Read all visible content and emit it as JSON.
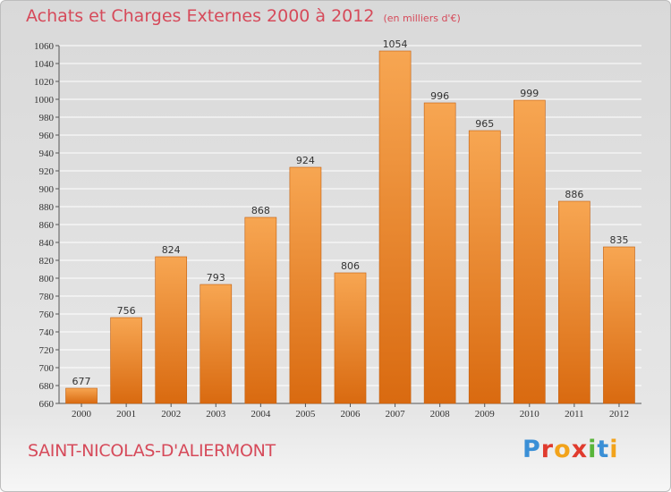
{
  "header": {
    "title": "Achats et Charges Externes 2000 à 2012",
    "unit_note": "(en milliers d'€)"
  },
  "footer": {
    "commune": "SAINT-NICOLAS-D'ALIERMONT",
    "brand_letters": [
      {
        "char": "P",
        "color": "#3a8fd6"
      },
      {
        "char": "r",
        "color": "#e03b2e"
      },
      {
        "char": "o",
        "color": "#f2a31b"
      },
      {
        "char": "x",
        "color": "#e03b2e"
      },
      {
        "char": "i",
        "color": "#59b53a"
      },
      {
        "char": "t",
        "color": "#3a8fd6"
      },
      {
        "char": "i",
        "color": "#f2a31b"
      }
    ]
  },
  "chart_data": {
    "type": "bar",
    "title": "Achats et Charges Externes 2000 à 2012",
    "subtitle": "(en milliers d'€)",
    "categories": [
      "2000",
      "2001",
      "2002",
      "2003",
      "2004",
      "2005",
      "2006",
      "2007",
      "2008",
      "2009",
      "2010",
      "2011",
      "2012"
    ],
    "values": [
      677,
      756,
      824,
      793,
      868,
      924,
      806,
      1054,
      996,
      965,
      999,
      886,
      835
    ],
    "ylim": [
      660,
      1060
    ],
    "yticks": [
      660,
      680,
      700,
      720,
      740,
      760,
      780,
      800,
      820,
      840,
      860,
      880,
      900,
      920,
      940,
      960,
      980,
      1000,
      1020,
      1040,
      1060
    ],
    "grid": true,
    "xlabel": "",
    "ylabel": "",
    "colors": {
      "bar_light": "#f7a652",
      "bar_dark": "#d96a10",
      "bar_edge": "#c25e0e",
      "grid": "#ffffff",
      "axis": "#555555",
      "text": "#333333"
    }
  }
}
